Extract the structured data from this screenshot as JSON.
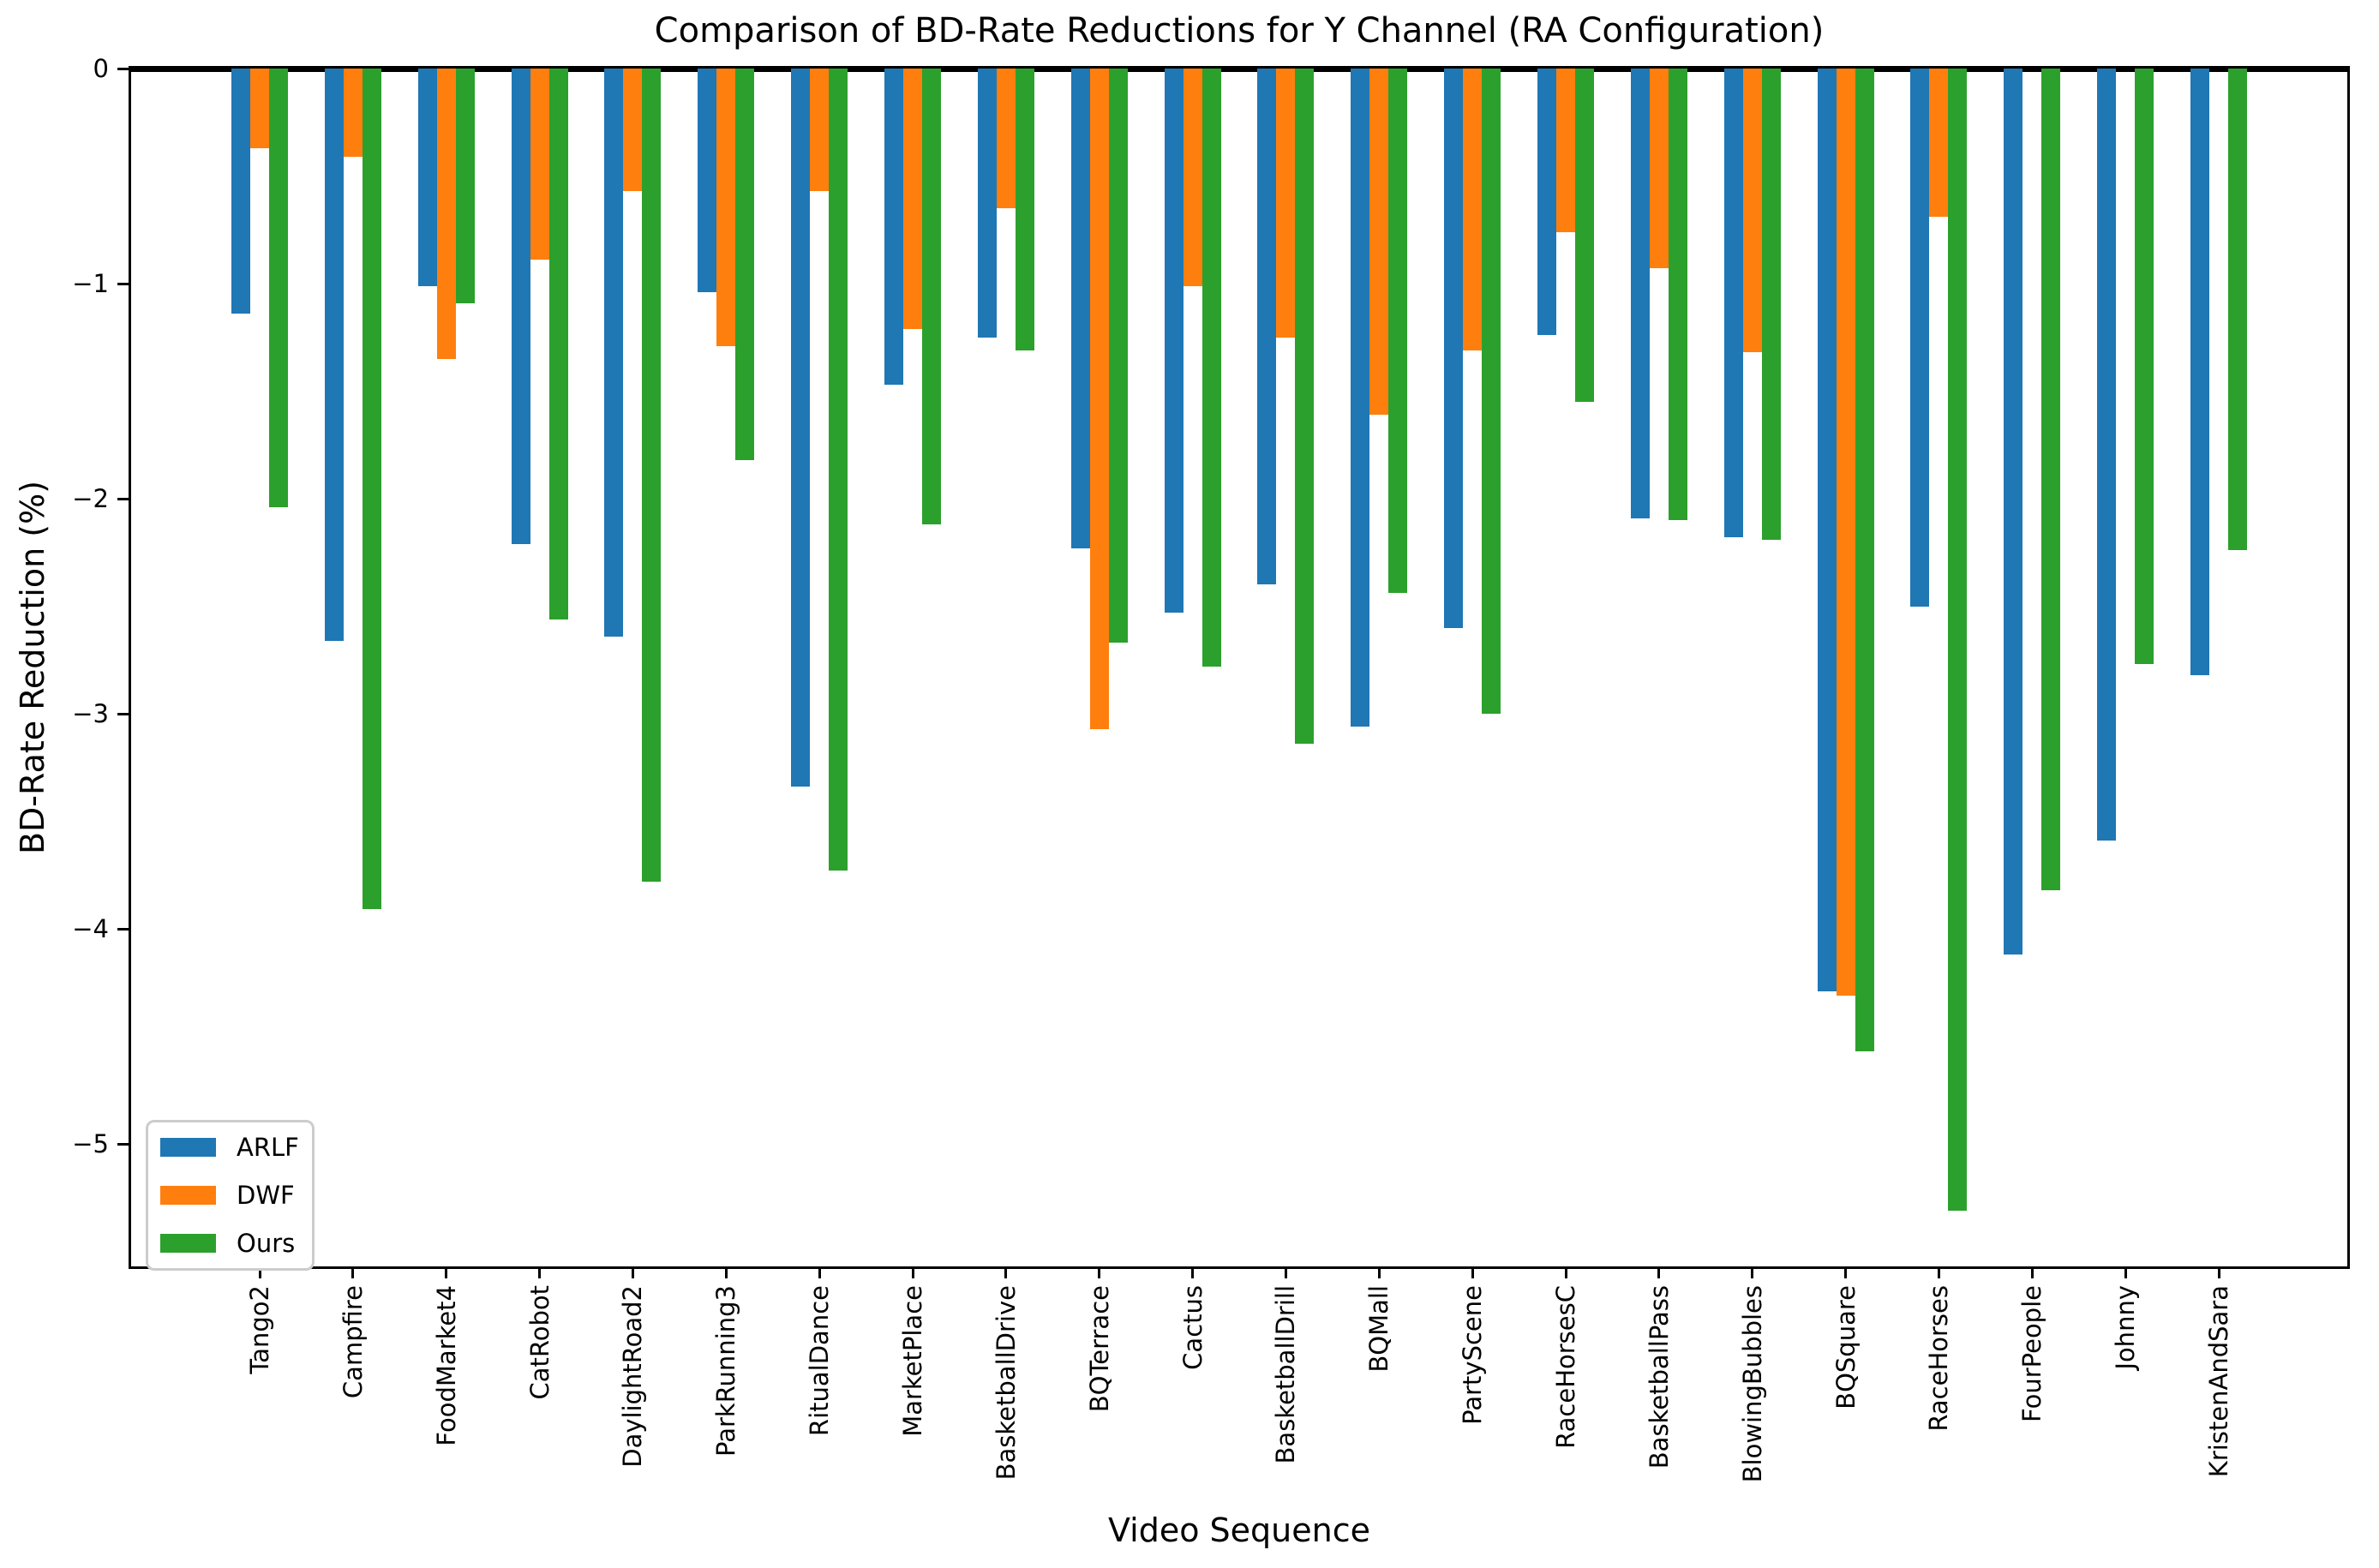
{
  "chart_data": {
    "type": "bar",
    "title": "Comparison of BD-Rate Reductions for Y Channel (RA Configuration)",
    "xlabel": "Video Sequence",
    "ylabel": "BD-Rate Reduction (%)",
    "categories": [
      "Tango2",
      "Campfire",
      "FoodMarket4",
      "CatRobot",
      "DaylightRoad2",
      "ParkRunning3",
      "RitualDance",
      "MarketPlace",
      "BasketballDrive",
      "BQTerrace",
      "Cactus",
      "BasketballDrill",
      "BQMall",
      "PartyScene",
      "RaceHorsesC",
      "BasketballPass",
      "BlowingBubbles",
      "BQSquare",
      "RaceHorses",
      "FourPeople",
      "Johnny",
      "KristenAndSara"
    ],
    "series": [
      {
        "name": "ARLF",
        "color": "#1f77b4",
        "values": [
          -1.14,
          -2.66,
          -1.01,
          -2.21,
          -2.64,
          -1.04,
          -3.34,
          -1.47,
          -1.25,
          -2.23,
          -2.53,
          -2.4,
          -3.06,
          -2.6,
          -1.24,
          -2.09,
          -2.18,
          -4.29,
          -2.5,
          -4.12,
          -3.59,
          -2.82
        ]
      },
      {
        "name": "DWF",
        "color": "#ff7f0e",
        "values": [
          -0.37,
          -0.41,
          -1.35,
          -0.89,
          -0.57,
          -1.29,
          -0.57,
          -1.21,
          -0.65,
          -3.07,
          -1.01,
          -1.25,
          -1.61,
          -1.31,
          -0.76,
          -0.93,
          -1.32,
          -4.31,
          -0.69,
          0,
          0,
          0
        ]
      },
      {
        "name": "Ours",
        "color": "#2ca02c",
        "values": [
          -2.04,
          -3.91,
          -1.09,
          -2.56,
          -3.78,
          -1.82,
          -3.73,
          -2.12,
          -1.31,
          -2.67,
          -2.78,
          -3.14,
          -2.44,
          -3.0,
          -1.55,
          -2.1,
          -2.19,
          -4.57,
          -5.31,
          -3.82,
          -2.77,
          -2.24
        ]
      }
    ],
    "ylim": [
      -5.57,
      0
    ],
    "yticks": [
      0,
      -1,
      -2,
      -3,
      -4,
      -5
    ],
    "ytick_labels": [
      "0",
      "−1",
      "−2",
      "−3",
      "−4",
      "−5"
    ],
    "grid": false,
    "legend_position": "lower left",
    "bar_orientation": "vertical"
  }
}
